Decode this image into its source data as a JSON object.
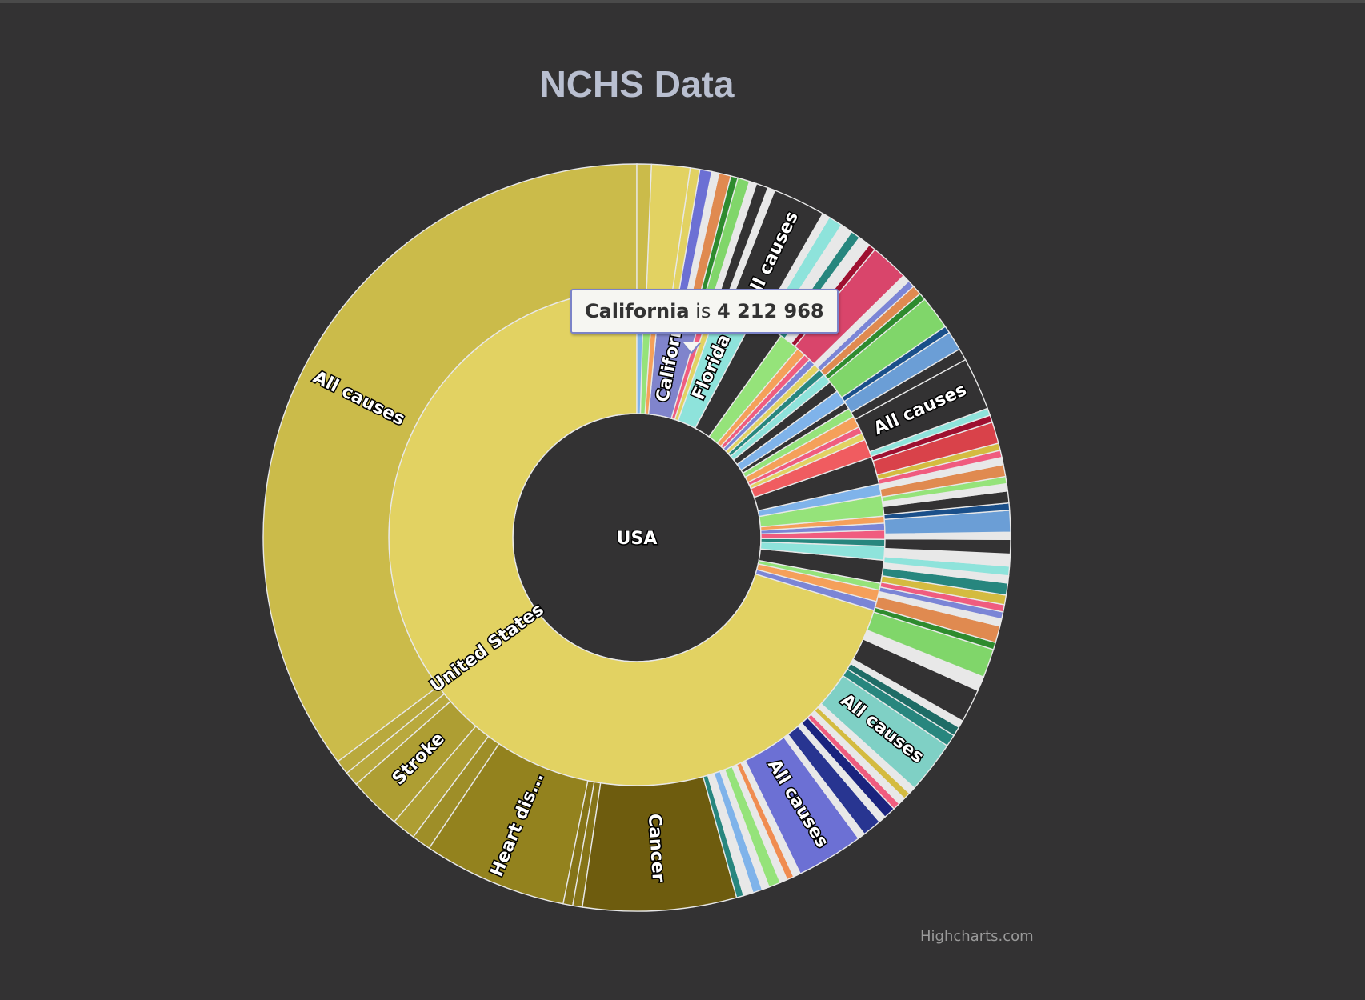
{
  "chart_data": {
    "type": "sunburst",
    "title": "NCHS Data",
    "credits": "Highcharts.com",
    "center": {
      "label": "USA",
      "color": "#333233"
    },
    "ring1": [
      {
        "name": "United States",
        "label": "United States",
        "value": 47,
        "color": "#e2d262"
      },
      {
        "name": "s1",
        "value": 0.4,
        "color": "#7b85d6"
      },
      {
        "name": "s2",
        "value": 0.5,
        "color": "#f5a05a"
      },
      {
        "name": "s3",
        "value": 0.3,
        "color": "#95e37a"
      },
      {
        "name": "s4",
        "value": 1.0,
        "color": "#333233"
      },
      {
        "name": "s5",
        "value": 0.6,
        "color": "#8ee3db"
      },
      {
        "name": "s6",
        "value": 0.3,
        "color": "#27867e"
      },
      {
        "name": "s7",
        "value": 0.4,
        "color": "#f05c7f"
      },
      {
        "name": "s8",
        "value": 0.3,
        "color": "#7b85d6"
      },
      {
        "name": "s9",
        "value": 0.3,
        "color": "#f5a05a"
      },
      {
        "name": "s10",
        "value": 0.9,
        "color": "#95e37a"
      },
      {
        "name": "s11",
        "value": 0.5,
        "color": "#7fb3ea"
      },
      {
        "name": "s12",
        "value": 1.2,
        "color": "#333233"
      },
      {
        "name": "s13",
        "value": 0.8,
        "color": "#f05c60"
      },
      {
        "name": "s14",
        "value": 0.3,
        "color": "#e2d262"
      },
      {
        "name": "s15",
        "value": 0.3,
        "color": "#f05c7f"
      },
      {
        "name": "s16",
        "value": 0.5,
        "color": "#f5a05a"
      },
      {
        "name": "s17",
        "value": 0.4,
        "color": "#95e37a"
      },
      {
        "name": "s18",
        "value": 0.3,
        "color": "#333233"
      },
      {
        "name": "s19",
        "value": 0.6,
        "color": "#7fb3ea"
      },
      {
        "name": "s20",
        "value": 0.5,
        "color": "#333233"
      },
      {
        "name": "s21",
        "value": 0.4,
        "color": "#8ee3db"
      },
      {
        "name": "s22",
        "value": 0.3,
        "color": "#27867e"
      },
      {
        "name": "s23",
        "value": 0.3,
        "color": "#e2d262"
      },
      {
        "name": "s24",
        "value": 0.3,
        "color": "#7b85d6"
      },
      {
        "name": "s25",
        "value": 0.3,
        "color": "#f05c7f"
      },
      {
        "name": "s26",
        "value": 0.4,
        "color": "#f5a05a"
      },
      {
        "name": "s27",
        "value": 0.9,
        "color": "#95e37a"
      },
      {
        "name": "s28",
        "value": 1.4,
        "color": "#333233"
      },
      {
        "name": "Florida",
        "label": "Florida",
        "value": 1.6,
        "color": "#8ee3db"
      },
      {
        "name": "s29",
        "value": 0.3,
        "color": "#e2d262"
      },
      {
        "name": "s30",
        "value": 0.3,
        "color": "#f05c7f"
      },
      {
        "name": "California",
        "label": "California",
        "value": 2.0,
        "color": "#8084cc"
      },
      {
        "name": "s31",
        "value": 0.3,
        "color": "#f5a05a"
      },
      {
        "name": "s32",
        "value": 0.4,
        "color": "#95e37a"
      },
      {
        "name": "s33",
        "value": 0.3,
        "color": "#7fb3ea"
      }
    ],
    "ring2": [
      {
        "name": "All causes",
        "label": "All causes",
        "value": 34,
        "color": "#cbbb4a"
      },
      {
        "name": "Stroke-other-1",
        "value": 0.6,
        "color": "#b9a93d"
      },
      {
        "name": "Stroke-other-2",
        "value": 0.6,
        "color": "#b9a93d"
      },
      {
        "name": "Stroke",
        "label": "Stroke",
        "value": 2.2,
        "color": "#ae9e33"
      },
      {
        "name": "d1",
        "value": 1.0,
        "color": "#ae9e33"
      },
      {
        "name": "d2",
        "value": 0.8,
        "color": "#9e8e28"
      },
      {
        "name": "Heart disease",
        "label": "Heart dis...",
        "value": 6.0,
        "color": "#93821e"
      },
      {
        "name": "d3",
        "value": 0.4,
        "color": "#857418"
      },
      {
        "name": "d4",
        "value": 0.4,
        "color": "#857418"
      },
      {
        "name": "Cancer",
        "label": "Cancer",
        "value": 6.4,
        "color": "#6e5c0e"
      },
      {
        "name": "c1",
        "value": 0.3,
        "color": "#27867e"
      },
      {
        "name": "c2",
        "value": 0.4,
        "color": "#e8e8e8"
      },
      {
        "name": "c3",
        "value": 0.4,
        "color": "#7fb3ea"
      },
      {
        "name": "c4",
        "value": 0.3,
        "color": "#e8e8e8"
      },
      {
        "name": "c5",
        "value": 0.5,
        "color": "#95e37a"
      },
      {
        "name": "c6",
        "value": 0.3,
        "color": "#e8e8e8"
      },
      {
        "name": "c7",
        "value": 0.3,
        "color": "#f08c50"
      },
      {
        "name": "c8",
        "value": 0.3,
        "color": "#e8e8e8"
      },
      {
        "name": "California All causes",
        "label": "All causes",
        "value": 2.8,
        "color": "#6c70d4"
      },
      {
        "name": "c9",
        "value": 0.3,
        "color": "#e8e8e8"
      },
      {
        "name": "c10",
        "value": 0.8,
        "color": "#283591"
      },
      {
        "name": "c11",
        "value": 0.3,
        "color": "#e8e8e8"
      },
      {
        "name": "c12",
        "value": 0.5,
        "color": "#1a237e"
      },
      {
        "name": "c13",
        "value": 0.3,
        "color": "#f05c7f"
      },
      {
        "name": "c14",
        "value": 0.3,
        "color": "#e8e8e8"
      },
      {
        "name": "c15",
        "value": 0.3,
        "color": "#d4bb40"
      },
      {
        "name": "c16",
        "value": 0.3,
        "color": "#e8e8e8"
      },
      {
        "name": "Florida All causes",
        "label": "All causes",
        "value": 2.2,
        "color": "#7fd0c5"
      },
      {
        "name": "c17",
        "value": 0.5,
        "color": "#27867e"
      },
      {
        "name": "c18",
        "value": 0.4,
        "color": "#1e6c66"
      },
      {
        "name": "c19",
        "value": 0.3,
        "color": "#e8e8e8"
      },
      {
        "name": "c20",
        "value": 1.4,
        "color": "#333233"
      },
      {
        "name": "c21",
        "value": 0.3,
        "color": "#e8e8e8"
      },
      {
        "name": "c22",
        "value": 0.3,
        "color": "#e8e8e8"
      },
      {
        "name": "c23",
        "value": 1.2,
        "color": "#80d66a"
      },
      {
        "name": "c24",
        "value": 0.3,
        "color": "#2e8b2e"
      },
      {
        "name": "c25",
        "value": 0.7,
        "color": "#e08a50"
      },
      {
        "name": "c26",
        "value": 0.3,
        "color": "#e8e8e8"
      },
      {
        "name": "c27",
        "value": 0.3,
        "color": "#7b85d6"
      },
      {
        "name": "c28",
        "value": 0.3,
        "color": "#f05c7f"
      },
      {
        "name": "c29",
        "value": 0.4,
        "color": "#d4bb40"
      },
      {
        "name": "c30",
        "value": 0.5,
        "color": "#27867e"
      },
      {
        "name": "c31",
        "value": 0.3,
        "color": "#e8e8e8"
      },
      {
        "name": "c32",
        "value": 0.4,
        "color": "#8ee3db"
      },
      {
        "name": "c33",
        "value": 0.5,
        "color": "#e8e8e8"
      },
      {
        "name": "c34",
        "value": 0.6,
        "color": "#333233"
      },
      {
        "name": "c35",
        "value": 0.3,
        "color": "#e8e8e8"
      },
      {
        "name": "c36",
        "value": 0.9,
        "color": "#6b9ed6"
      },
      {
        "name": "c37",
        "value": 0.3,
        "color": "#1a4f8a"
      },
      {
        "name": "c38",
        "value": 0.5,
        "color": "#333233"
      },
      {
        "name": "c39",
        "value": 0.3,
        "color": "#e8e8e8"
      },
      {
        "name": "c40",
        "value": 0.3,
        "color": "#95e37a"
      },
      {
        "name": "c41",
        "value": 0.5,
        "color": "#e08a50"
      },
      {
        "name": "c42",
        "value": 0.3,
        "color": "#e8e8e8"
      },
      {
        "name": "c43",
        "value": 0.3,
        "color": "#f05c7f"
      },
      {
        "name": "c44",
        "value": 0.3,
        "color": "#d4bb40"
      },
      {
        "name": "c45",
        "value": 0.9,
        "color": "#d9424a"
      },
      {
        "name": "c46",
        "value": 0.3,
        "color": "#9e1030"
      },
      {
        "name": "c47",
        "value": 0.3,
        "color": "#8ee3db"
      },
      {
        "name": "Texas All causes",
        "label": "All causes",
        "value": 2.2,
        "color": "#333233"
      },
      {
        "name": "c48",
        "value": 0.5,
        "color": "#333233"
      },
      {
        "name": "c49",
        "value": 0.8,
        "color": "#6b9ed6"
      },
      {
        "name": "c50",
        "value": 0.3,
        "color": "#1a4f8a"
      },
      {
        "name": "c51",
        "value": 1.4,
        "color": "#80d66a"
      },
      {
        "name": "c52",
        "value": 0.3,
        "color": "#2e8b2e"
      },
      {
        "name": "c53",
        "value": 0.4,
        "color": "#e08a50"
      },
      {
        "name": "c54",
        "value": 0.3,
        "color": "#7b85d6"
      },
      {
        "name": "c55",
        "value": 0.3,
        "color": "#e8e8e8"
      },
      {
        "name": "c56",
        "value": 1.6,
        "color": "#d9456b"
      },
      {
        "name": "c57",
        "value": 0.3,
        "color": "#9e1030"
      },
      {
        "name": "c58",
        "value": 0.5,
        "color": "#e8e8e8"
      },
      {
        "name": "c59",
        "value": 0.4,
        "color": "#27867e"
      },
      {
        "name": "c60",
        "value": 0.5,
        "color": "#e8e8e8"
      },
      {
        "name": "c61",
        "value": 0.6,
        "color": "#8ee3db"
      },
      {
        "name": "c62",
        "value": 0.3,
        "color": "#e8e8e8"
      },
      {
        "name": "New York All causes",
        "label": "All causes",
        "value": 2.2,
        "color": "#333233"
      },
      {
        "name": "c63",
        "value": 0.3,
        "color": "#e8e8e8"
      },
      {
        "name": "c64",
        "value": 0.5,
        "color": "#333233"
      },
      {
        "name": "c65",
        "value": 0.3,
        "color": "#e8e8e8"
      },
      {
        "name": "c66",
        "value": 0.5,
        "color": "#80d66a"
      },
      {
        "name": "c67",
        "value": 0.3,
        "color": "#2e8b2e"
      },
      {
        "name": "c68",
        "value": 0.5,
        "color": "#e08a50"
      },
      {
        "name": "c69",
        "value": 0.3,
        "color": "#e8e8e8"
      },
      {
        "name": "c70",
        "value": 0.5,
        "color": "#6c70d4"
      },
      {
        "name": "c71",
        "value": 0.4,
        "color": "#e2d262"
      },
      {
        "name": "c72",
        "value": 1.6,
        "color": "#e2d262"
      },
      {
        "name": "c73",
        "value": 0.6,
        "color": "#cbbb4a"
      }
    ]
  },
  "tooltip": {
    "point": "California",
    "connector": " is ",
    "value": "4 212 968"
  }
}
